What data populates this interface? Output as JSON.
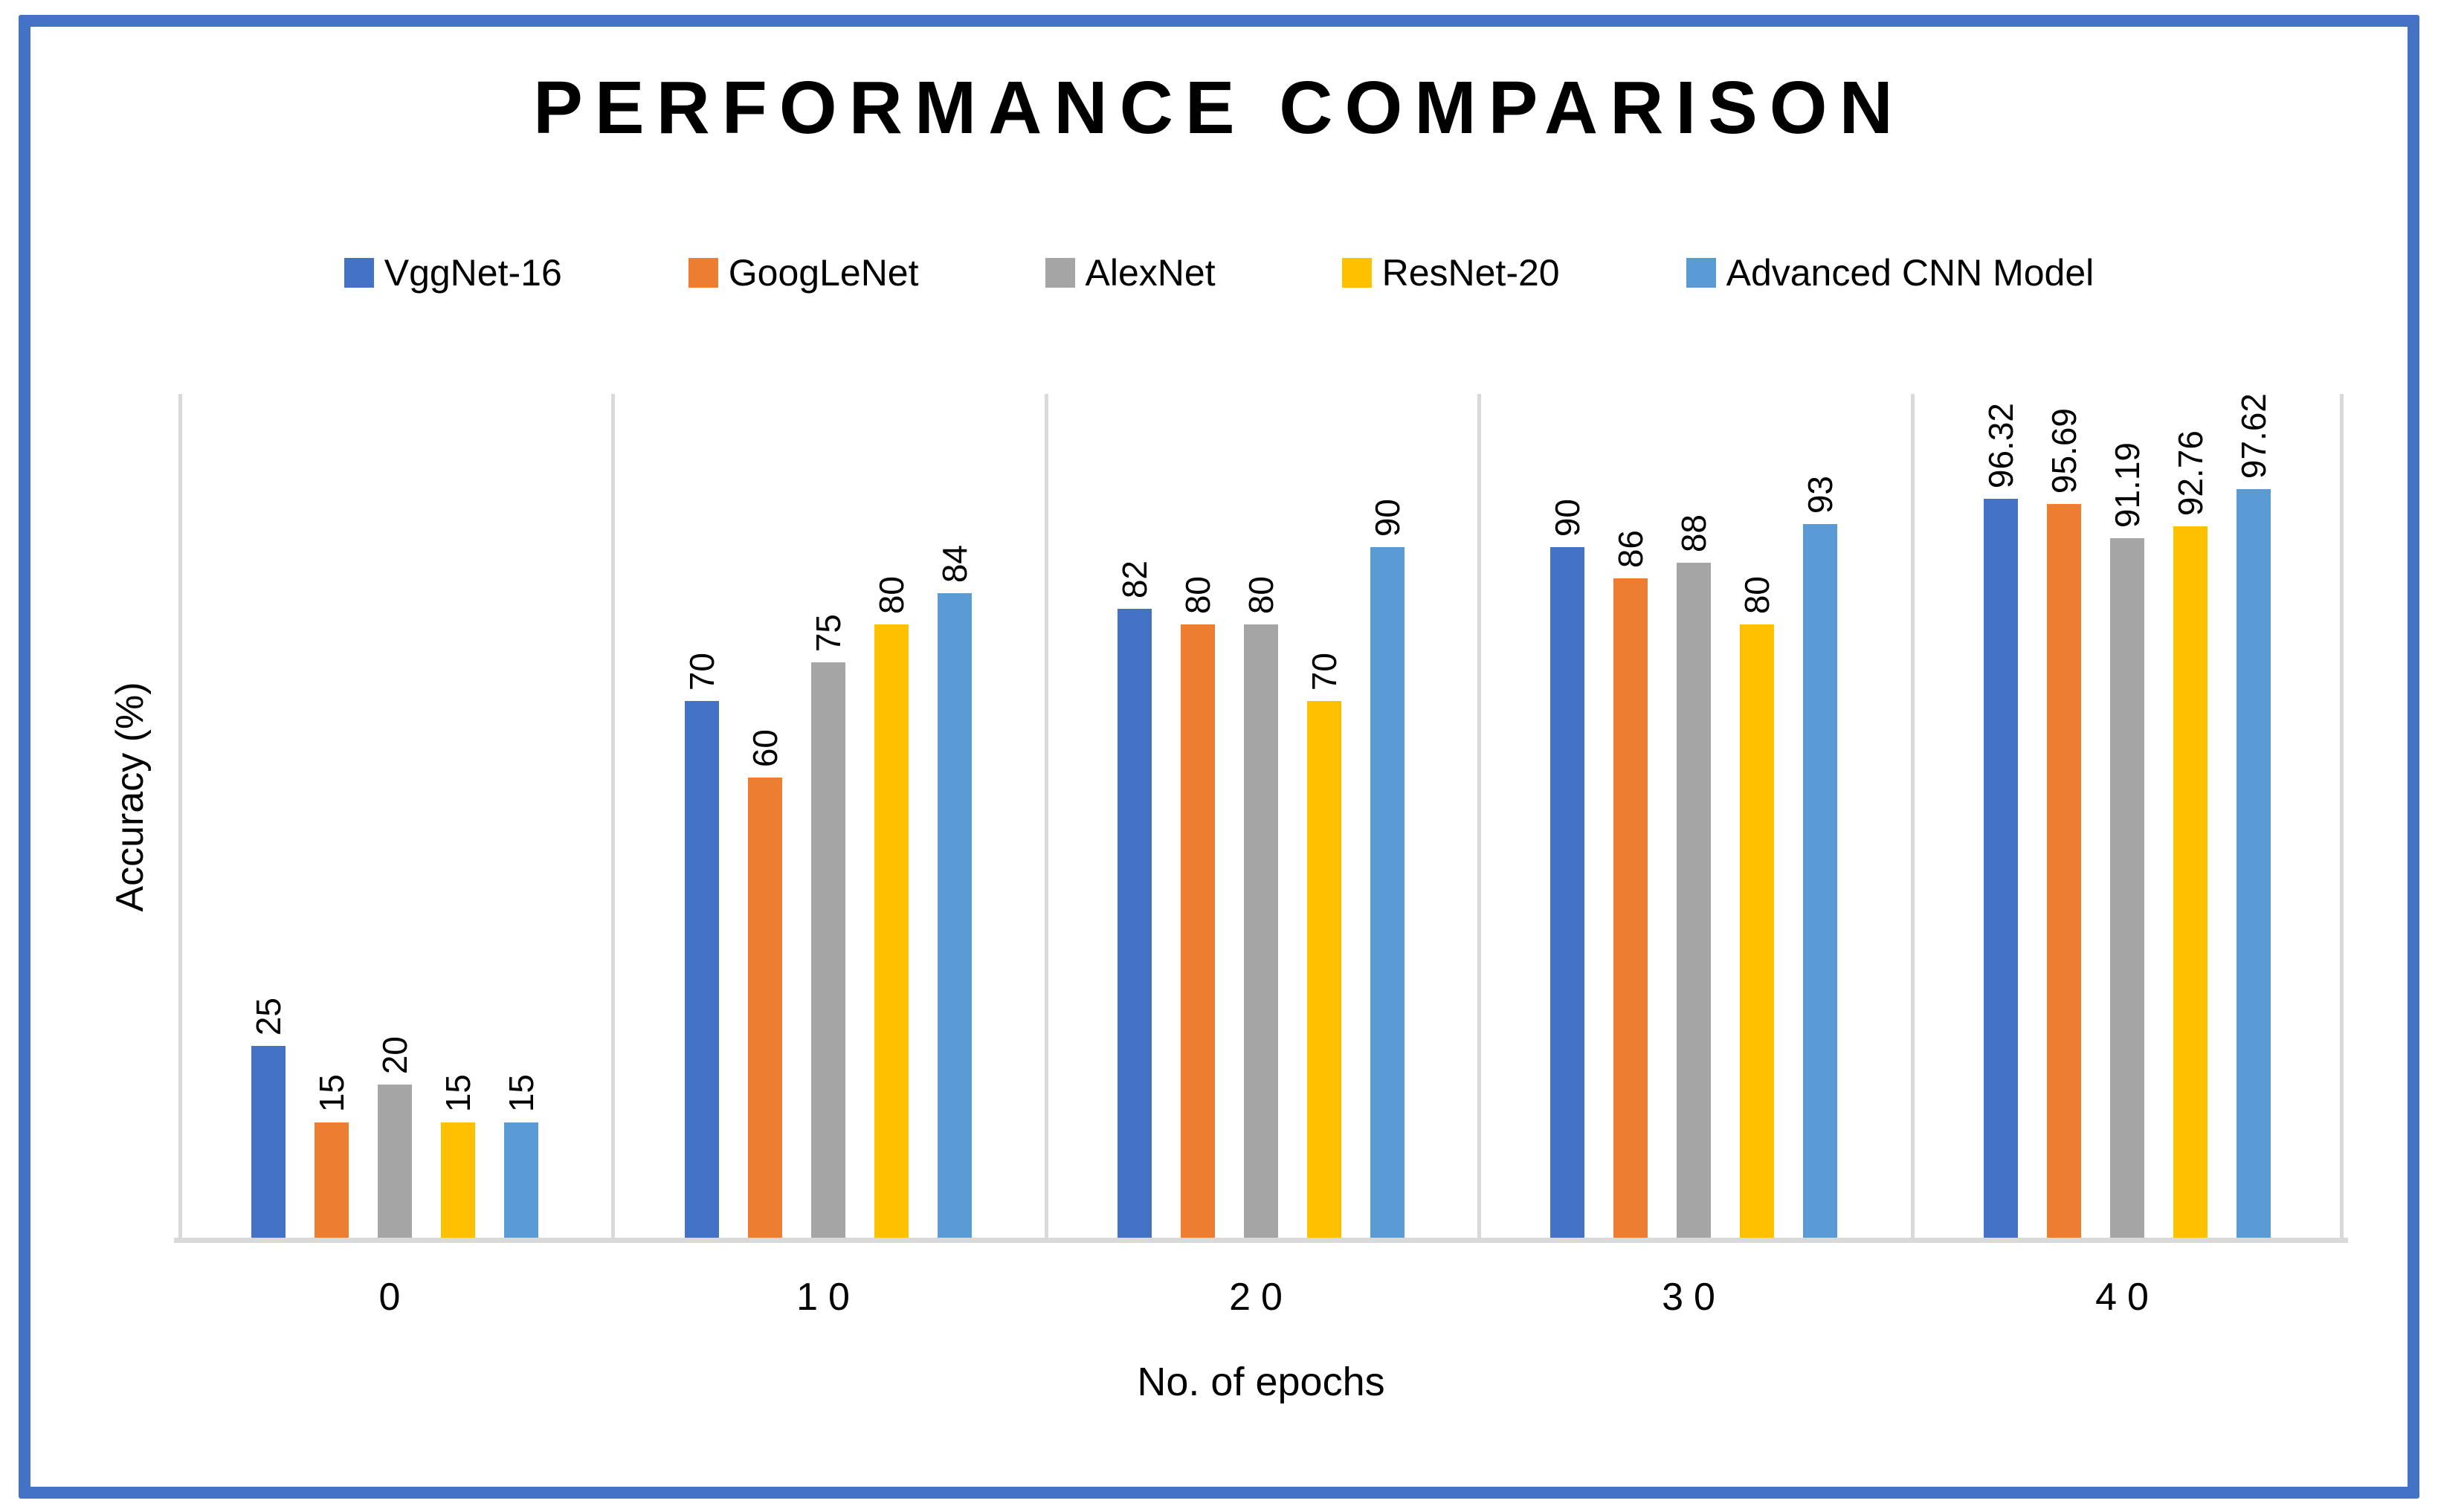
{
  "window": {
    "background": "#FFFFFF",
    "border_color": "#4472C4"
  },
  "chart_data": {
    "type": "bar",
    "title": "PERFORMANCE COMPARISON",
    "xlabel": "No. of epochs",
    "ylabel": "Accuracy (%)",
    "categories": [
      "0",
      "10",
      "20",
      "30",
      "40"
    ],
    "series": [
      {
        "name": "VggNet-16",
        "color": "#4472C4",
        "values": [
          25,
          70,
          82,
          90,
          96.32
        ]
      },
      {
        "name": "GoogLeNet",
        "color": "#ED7D31",
        "values": [
          15,
          60,
          80,
          86,
          95.69
        ]
      },
      {
        "name": "AlexNet",
        "color": "#A5A5A5",
        "values": [
          20,
          75,
          80,
          88,
          91.19
        ]
      },
      {
        "name": "ResNet-20",
        "color": "#FFC000",
        "values": [
          15,
          80,
          70,
          80,
          92.76
        ]
      },
      {
        "name": "Advanced CNN Model",
        "color": "#5B9BD5",
        "values": [
          15,
          84,
          90,
          93,
          97.62
        ]
      }
    ],
    "ylim": [
      0,
      110
    ],
    "y_tick_labels_visible": false,
    "grid": "vertical category separator lines only",
    "legend_position": "top",
    "data_labels": "rotated 90 degrees, reading bottom-to-top, above each bar",
    "separator_color": "#D9D9D9",
    "axis_line_color": "#D9D9D9",
    "text_color": "#000000"
  }
}
